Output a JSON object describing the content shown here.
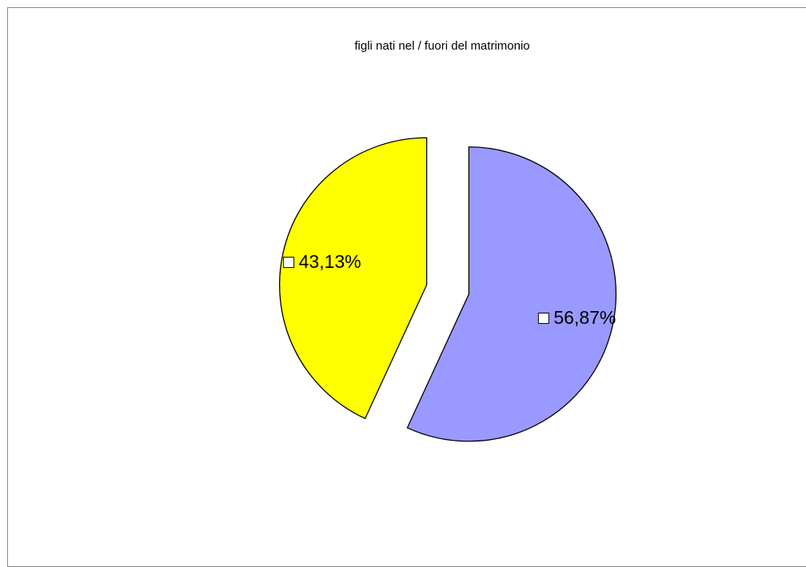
{
  "chart_data": {
    "type": "pie",
    "title": "figli nati nel / fuori del  matrimonio",
    "slices": [
      {
        "value": 56.87,
        "label": "56,87%",
        "color": "#9999ff",
        "exploded": true
      },
      {
        "value": 43.13,
        "label": "43,13%",
        "color": "#ffff00",
        "exploded": true
      }
    ],
    "start": "12 o'clock",
    "direction": "clockwise",
    "legend": "none",
    "data_labels": "percent, inside slices"
  }
}
